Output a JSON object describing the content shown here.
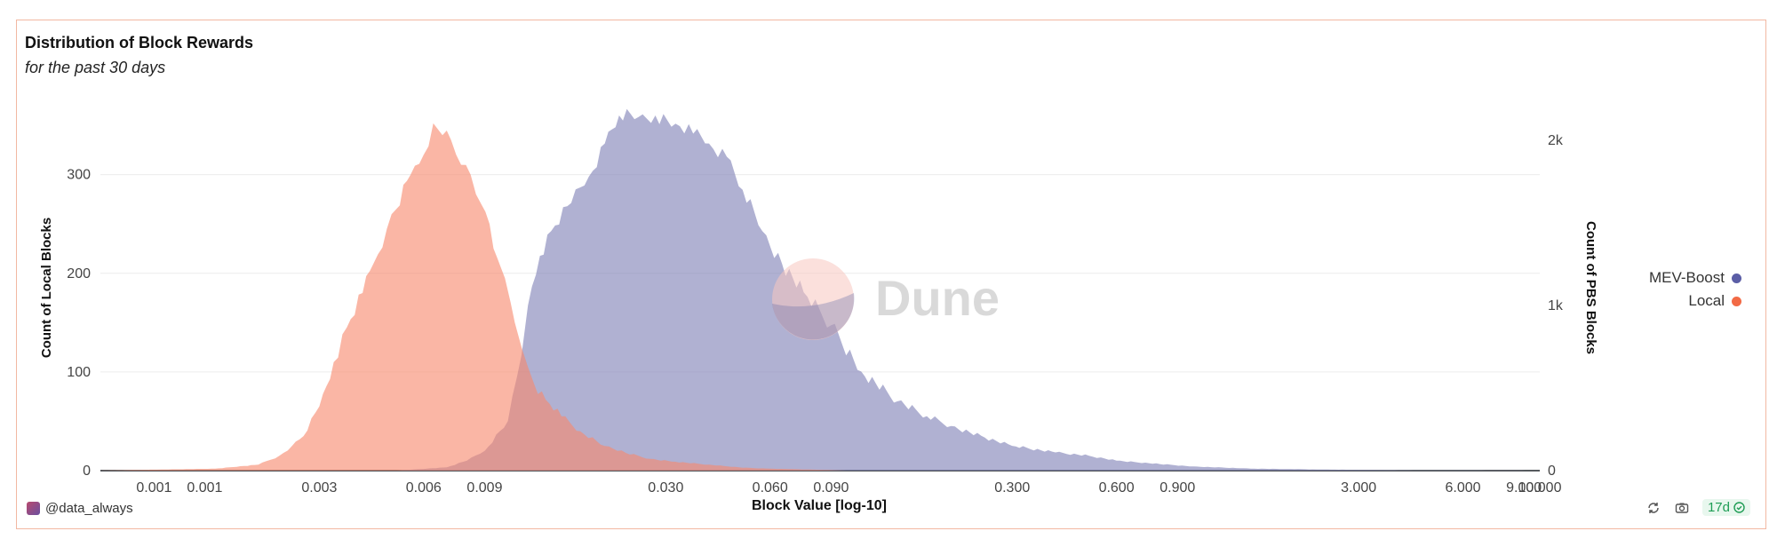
{
  "header": {
    "title": "Distribution of Block Rewards",
    "subtitle": "for the past 30 days"
  },
  "watermark": {
    "text": "Dune"
  },
  "legend": {
    "items": [
      {
        "label": "MEV-Boost",
        "color": "#5b5ea6"
      },
      {
        "label": "Local",
        "color": "#f26a45"
      }
    ]
  },
  "footer": {
    "author": "@data_always",
    "age": "17d"
  },
  "chart_data": {
    "type": "area",
    "title": "Distribution of Block Rewards",
    "subtitle": "for the past 30 days",
    "xlabel": "Block Value [log-10]",
    "ylabel_left": "Count of Local Blocks",
    "ylabel_right": "Count of PBS Blocks",
    "x_scale": "log10",
    "xlim": [
      0.0007,
      10
    ],
    "x_ticks": [
      {
        "value": 0.001,
        "label": "0.001"
      },
      {
        "value": 0.0014,
        "label": "0.001"
      },
      {
        "value": 0.003,
        "label": "0.003"
      },
      {
        "value": 0.006,
        "label": "0.006"
      },
      {
        "value": 0.009,
        "label": "0.009"
      },
      {
        "value": 0.03,
        "label": "0.030"
      },
      {
        "value": 0.06,
        "label": "0.060"
      },
      {
        "value": 0.09,
        "label": "0.090"
      },
      {
        "value": 0.3,
        "label": "0.300"
      },
      {
        "value": 0.6,
        "label": "0.600"
      },
      {
        "value": 0.9,
        "label": "0.900"
      },
      {
        "value": 3,
        "label": "3.000"
      },
      {
        "value": 6,
        "label": "6.000"
      },
      {
        "value": 9,
        "label": "9.000"
      },
      {
        "value": 10,
        "label": "10.000"
      }
    ],
    "y_left": {
      "ylim": [
        0,
        360
      ],
      "ticks": [
        0,
        100,
        200,
        300
      ]
    },
    "y_right": {
      "ylim": [
        0,
        2150
      ],
      "ticks": [
        {
          "value": 0,
          "label": "0"
        },
        {
          "value": 1000,
          "label": "1k"
        },
        {
          "value": 2000,
          "label": "2k"
        }
      ]
    },
    "grid": true,
    "legend_position": "right",
    "series": [
      {
        "name": "MEV-Boost",
        "axis": "right",
        "color": "#5b5ea6",
        "points": [
          [
            0.0007,
            0
          ],
          [
            0.005,
            0
          ],
          [
            0.007,
            20
          ],
          [
            0.008,
            60
          ],
          [
            0.009,
            120
          ],
          [
            0.0105,
            300
          ],
          [
            0.0115,
            700
          ],
          [
            0.012,
            1000
          ],
          [
            0.013,
            1300
          ],
          [
            0.014,
            1450
          ],
          [
            0.016,
            1620
          ],
          [
            0.018,
            1780
          ],
          [
            0.02,
            1980
          ],
          [
            0.022,
            2150
          ],
          [
            0.025,
            2140
          ],
          [
            0.028,
            2150
          ],
          [
            0.032,
            2100
          ],
          [
            0.036,
            2040
          ],
          [
            0.04,
            1980
          ],
          [
            0.045,
            1900
          ],
          [
            0.05,
            1700
          ],
          [
            0.057,
            1450
          ],
          [
            0.065,
            1250
          ],
          [
            0.075,
            1080
          ],
          [
            0.09,
            880
          ],
          [
            0.11,
            600
          ],
          [
            0.14,
            420
          ],
          [
            0.17,
            330
          ],
          [
            0.2,
            270
          ],
          [
            0.25,
            200
          ],
          [
            0.3,
            150
          ],
          [
            0.4,
            110
          ],
          [
            0.5,
            90
          ],
          [
            0.6,
            60
          ],
          [
            0.8,
            40
          ],
          [
            1.0,
            25
          ],
          [
            1.5,
            12
          ],
          [
            2.5,
            6
          ],
          [
            4,
            2
          ],
          [
            10,
            0
          ]
        ]
      },
      {
        "name": "Local",
        "axis": "left",
        "color": "#f26a45",
        "points": [
          [
            0.0007,
            0
          ],
          [
            0.001,
            1
          ],
          [
            0.0015,
            2
          ],
          [
            0.002,
            6
          ],
          [
            0.0023,
            15
          ],
          [
            0.0025,
            25
          ],
          [
            0.0027,
            35
          ],
          [
            0.003,
            65
          ],
          [
            0.0033,
            110
          ],
          [
            0.0036,
            145
          ],
          [
            0.004,
            180
          ],
          [
            0.0043,
            210
          ],
          [
            0.0047,
            245
          ],
          [
            0.005,
            265
          ],
          [
            0.0055,
            300
          ],
          [
            0.006,
            320
          ],
          [
            0.0064,
            352
          ],
          [
            0.0068,
            340
          ],
          [
            0.0072,
            335
          ],
          [
            0.0077,
            310
          ],
          [
            0.0082,
            300
          ],
          [
            0.0088,
            270
          ],
          [
            0.0093,
            250
          ],
          [
            0.0098,
            215
          ],
          [
            0.0103,
            195
          ],
          [
            0.0107,
            170
          ],
          [
            0.011,
            150
          ],
          [
            0.0115,
            125
          ],
          [
            0.012,
            105
          ],
          [
            0.0125,
            88
          ],
          [
            0.0135,
            72
          ],
          [
            0.015,
            55
          ],
          [
            0.017,
            40
          ],
          [
            0.02,
            25
          ],
          [
            0.023,
            18
          ],
          [
            0.027,
            12
          ],
          [
            0.032,
            9
          ],
          [
            0.04,
            6
          ],
          [
            0.05,
            3
          ],
          [
            0.06,
            2
          ],
          [
            0.08,
            1
          ],
          [
            0.1,
            0
          ],
          [
            10,
            0
          ]
        ]
      }
    ]
  }
}
